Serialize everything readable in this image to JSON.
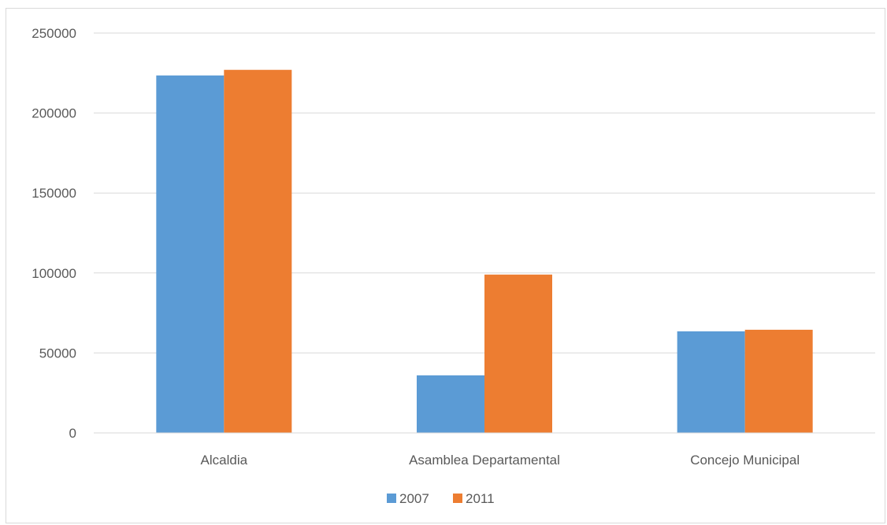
{
  "chart_data": {
    "type": "bar",
    "title": "",
    "xlabel": "",
    "ylabel": "",
    "categories": [
      "Alcaldia",
      "Asamblea Departamental",
      "Concejo Municipal"
    ],
    "series": [
      {
        "name": "2007",
        "values": [
          223500,
          36000,
          63500
        ],
        "color": "#5b9bd5"
      },
      {
        "name": "2011",
        "values": [
          227000,
          99000,
          64500
        ],
        "color": "#ed7d31"
      }
    ],
    "ylim": [
      0,
      250000
    ],
    "yticks": [
      "0",
      "50000",
      "100000",
      "150000",
      "200000",
      "250000"
    ],
    "grid": true,
    "legend_position": "bottom"
  }
}
